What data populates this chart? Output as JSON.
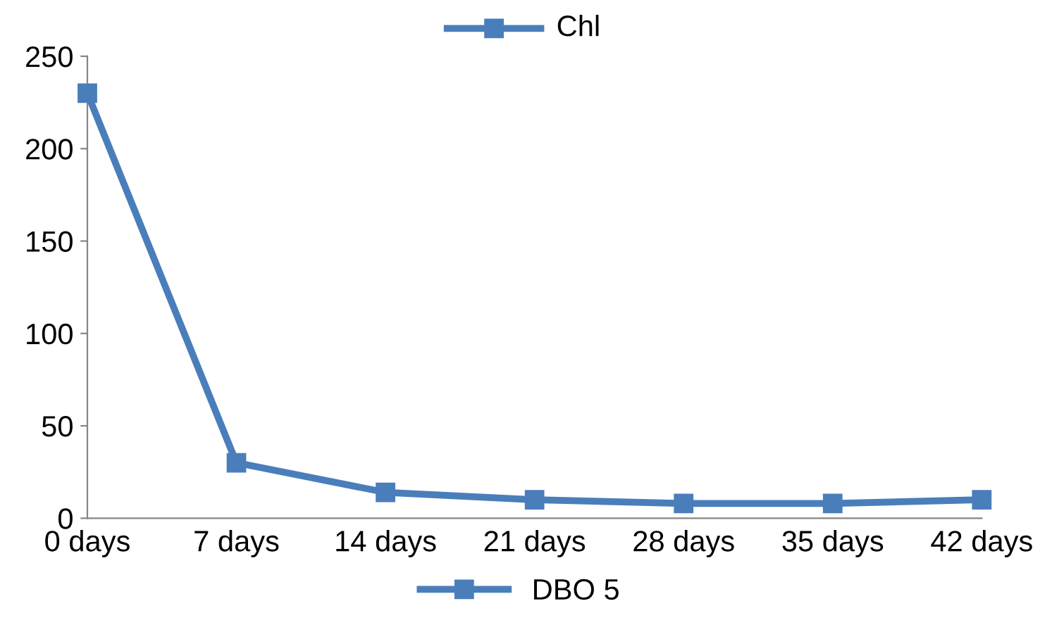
{
  "chart_data": {
    "type": "line",
    "title": "Chl",
    "categories": [
      "0 days",
      "7 days",
      "14 days",
      "21 days",
      "28 days",
      "35 days",
      "42 days"
    ],
    "series": [
      {
        "name": "DBO 5",
        "color": "#4a7ebb",
        "values": [
          230,
          30,
          14,
          10,
          8,
          8,
          10
        ]
      }
    ],
    "ylim": [
      0,
      250
    ],
    "yticks": [
      0,
      50,
      100,
      150,
      200,
      250
    ],
    "grid": false,
    "legend": "bottom",
    "marker": "square",
    "line_style": "solid"
  }
}
